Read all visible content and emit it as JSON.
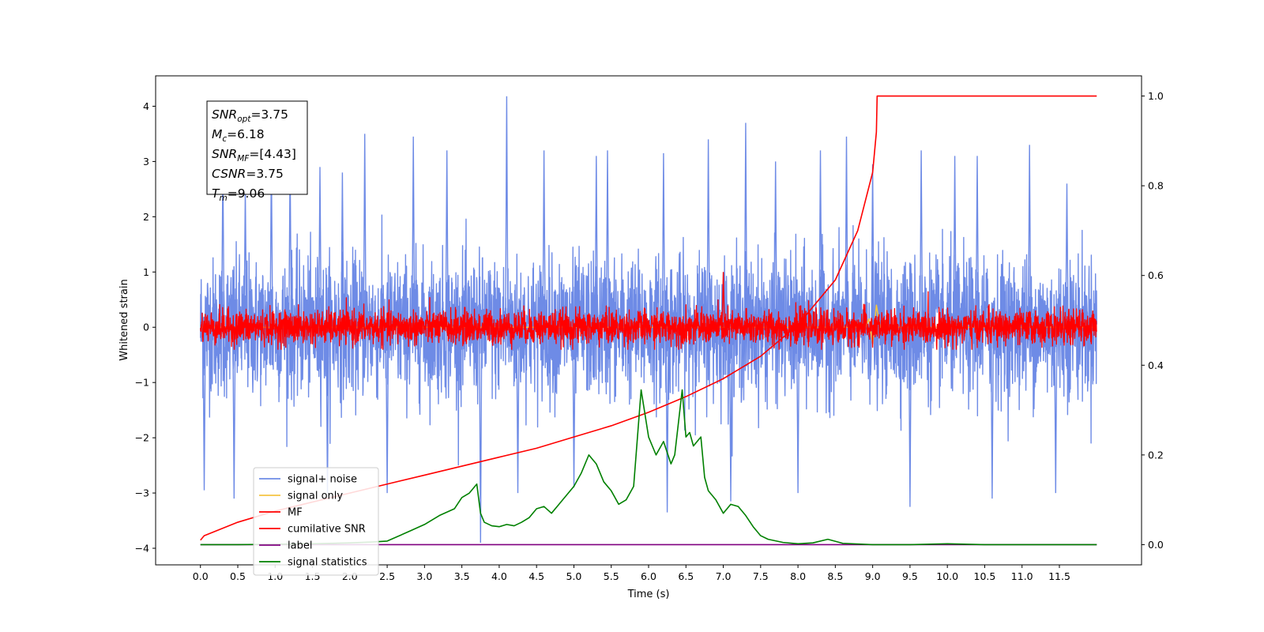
{
  "chart_data": {
    "type": "line",
    "xlabel": "Time (s)",
    "ylabel_left": "Whitened strain",
    "ylabel_right": "",
    "xlim": [
      -0.6,
      12.6
    ],
    "ylim_left": [
      -4.3,
      4.55
    ],
    "ylim_right": [
      -0.045,
      1.045
    ],
    "x_ticks": [
      0.0,
      0.5,
      1.0,
      1.5,
      2.0,
      2.5,
      3.0,
      3.5,
      4.0,
      4.5,
      5.0,
      5.5,
      6.0,
      6.5,
      7.0,
      7.5,
      8.0,
      8.5,
      9.0,
      9.5,
      10.0,
      10.5,
      11.0,
      11.5
    ],
    "x_tick_labels": [
      "0.0",
      "0.5",
      "1.0",
      "1.5",
      "2.0",
      "2.5",
      "3.0",
      "3.5",
      "4.0",
      "4.5",
      "5.0",
      "5.5",
      "6.0",
      "6.5",
      "7.0",
      "7.5",
      "8.0",
      "8.5",
      "9.0",
      "9.5",
      "10.0",
      "10.5",
      "11.0",
      "11.5"
    ],
    "y_ticks_left": [
      -4,
      -3,
      -2,
      -1,
      0,
      1,
      2,
      3,
      4
    ],
    "y_tick_labels_left": [
      "−4",
      "−3",
      "−2",
      "−1",
      "0",
      "1",
      "2",
      "3",
      "4"
    ],
    "y_ticks_right": [
      0.0,
      0.2,
      0.4,
      0.6,
      0.8,
      1.0
    ],
    "y_tick_labels_right": [
      "0.0",
      "0.2",
      "0.4",
      "0.6",
      "0.8",
      "1.0"
    ],
    "legend": {
      "placement": "lower-left",
      "entries": [
        {
          "name": "signal+ noise",
          "color": "#6e8be6"
        },
        {
          "name": "signal only",
          "color": "#f5c542"
        },
        {
          "name": "MF",
          "color": "#ff0000"
        },
        {
          "name": "cumilative SNR",
          "color": "#ff0000"
        },
        {
          "name": "label",
          "color": "#800080"
        },
        {
          "name": "signal statistics",
          "color": "#008000"
        }
      ]
    },
    "annotation": {
      "lines": [
        {
          "base": "SNR",
          "sub": "opt",
          "value": "=3.75"
        },
        {
          "base": "M",
          "sub": "c",
          "value": "=6.18"
        },
        {
          "base": "SNR",
          "sub": "MF",
          "value": "=[4.43]"
        },
        {
          "base": "CSNR",
          "sub": "",
          "value": "=3.75"
        },
        {
          "base": "T",
          "sub": "m",
          "value": "=9.06"
        }
      ]
    },
    "series": [
      {
        "name": "signal+ noise",
        "axis": "left",
        "color": "#6e8be6",
        "noise": {
          "x_start": 0.0,
          "x_end": 12.0,
          "amplitude": 1.0,
          "peak_max": 4.18,
          "trough_min": -3.9
        },
        "spikes": [
          {
            "x": 0.3,
            "y": 3.0
          },
          {
            "x": 0.6,
            "y": 2.5
          },
          {
            "x": 0.95,
            "y": 3.1
          },
          {
            "x": 1.2,
            "y": 3.05
          },
          {
            "x": 1.6,
            "y": 2.9
          },
          {
            "x": 1.9,
            "y": 2.8
          },
          {
            "x": 2.2,
            "y": 3.5
          },
          {
            "x": 2.85,
            "y": 3.45
          },
          {
            "x": 3.3,
            "y": 3.2
          },
          {
            "x": 4.1,
            "y": 4.18
          },
          {
            "x": 4.6,
            "y": 3.2
          },
          {
            "x": 5.3,
            "y": 3.1
          },
          {
            "x": 5.45,
            "y": 3.2
          },
          {
            "x": 6.2,
            "y": 3.15
          },
          {
            "x": 6.8,
            "y": 3.4
          },
          {
            "x": 7.3,
            "y": 3.7
          },
          {
            "x": 7.7,
            "y": 3.0
          },
          {
            "x": 8.3,
            "y": 3.2
          },
          {
            "x": 8.65,
            "y": 3.45
          },
          {
            "x": 9.0,
            "y": 2.95
          },
          {
            "x": 9.65,
            "y": 3.2
          },
          {
            "x": 10.1,
            "y": 3.1
          },
          {
            "x": 10.4,
            "y": 3.1
          },
          {
            "x": 11.1,
            "y": 3.3
          },
          {
            "x": 11.6,
            "y": 2.6
          },
          {
            "x": 0.05,
            "y": -2.95
          },
          {
            "x": 0.45,
            "y": -3.1
          },
          {
            "x": 1.7,
            "y": -3.0
          },
          {
            "x": 2.5,
            "y": -3.0
          },
          {
            "x": 3.75,
            "y": -3.9
          },
          {
            "x": 4.25,
            "y": -3.0
          },
          {
            "x": 5.0,
            "y": -2.9
          },
          {
            "x": 6.25,
            "y": -3.35
          },
          {
            "x": 7.1,
            "y": -3.15
          },
          {
            "x": 8.0,
            "y": -3.0
          },
          {
            "x": 9.5,
            "y": -3.25
          },
          {
            "x": 10.6,
            "y": -3.1
          },
          {
            "x": 11.45,
            "y": -3.0
          }
        ]
      },
      {
        "name": "signal only",
        "axis": "left",
        "color": "#f5c542",
        "x": [
          0.0,
          8.9,
          8.95,
          9.0,
          9.05,
          9.1,
          12.0
        ],
        "y": [
          0.0,
          0.0,
          0.15,
          -0.3,
          0.4,
          0.0,
          0.0
        ]
      },
      {
        "name": "MF",
        "axis": "left",
        "color": "#ff0000",
        "noise": {
          "x_start": 0.0,
          "x_end": 12.0,
          "amplitude": 0.3,
          "peak_max": 1.0,
          "trough_min": -0.4
        }
      },
      {
        "name": "cumilative SNR",
        "axis": "right",
        "color": "#ff0000",
        "x": [
          0.0,
          0.05,
          0.5,
          1.0,
          1.5,
          2.0,
          2.5,
          3.0,
          3.5,
          4.0,
          4.5,
          5.0,
          5.5,
          6.0,
          6.5,
          7.0,
          7.5,
          8.0,
          8.5,
          8.8,
          9.0,
          9.05,
          9.06,
          12.0
        ],
        "y": [
          0.01,
          0.02,
          0.05,
          0.075,
          0.095,
          0.115,
          0.135,
          0.155,
          0.175,
          0.195,
          0.215,
          0.24,
          0.265,
          0.295,
          0.33,
          0.37,
          0.42,
          0.49,
          0.59,
          0.7,
          0.83,
          0.92,
          1.0,
          1.0
        ]
      },
      {
        "name": "label",
        "axis": "right",
        "color": "#800080",
        "x": [
          0.0,
          12.0
        ],
        "y": [
          0.0,
          0.0
        ]
      },
      {
        "name": "signal statistics",
        "axis": "right",
        "color": "#008000",
        "x": [
          0.0,
          0.5,
          1.0,
          1.5,
          2.0,
          2.3,
          2.5,
          2.8,
          3.0,
          3.2,
          3.4,
          3.5,
          3.6,
          3.7,
          3.75,
          3.8,
          3.9,
          4.0,
          4.1,
          4.2,
          4.3,
          4.4,
          4.5,
          4.6,
          4.7,
          4.8,
          4.9,
          5.0,
          5.1,
          5.2,
          5.3,
          5.4,
          5.5,
          5.6,
          5.7,
          5.8,
          5.9,
          6.0,
          6.1,
          6.2,
          6.3,
          6.35,
          6.45,
          6.5,
          6.55,
          6.6,
          6.7,
          6.75,
          6.8,
          6.9,
          7.0,
          7.1,
          7.2,
          7.3,
          7.4,
          7.5,
          7.6,
          7.8,
          8.0,
          8.2,
          8.4,
          8.6,
          9.0,
          9.5,
          10.0,
          10.5,
          11.0,
          12.0
        ],
        "y": [
          0.0,
          0.0,
          0.001,
          0.002,
          0.004,
          0.006,
          0.008,
          0.03,
          0.045,
          0.065,
          0.08,
          0.105,
          0.115,
          0.135,
          0.07,
          0.05,
          0.042,
          0.04,
          0.045,
          0.042,
          0.05,
          0.06,
          0.08,
          0.085,
          0.07,
          0.09,
          0.11,
          0.13,
          0.16,
          0.2,
          0.18,
          0.14,
          0.12,
          0.09,
          0.1,
          0.13,
          0.345,
          0.24,
          0.2,
          0.23,
          0.18,
          0.2,
          0.345,
          0.24,
          0.25,
          0.22,
          0.24,
          0.15,
          0.12,
          0.1,
          0.07,
          0.09,
          0.085,
          0.065,
          0.04,
          0.02,
          0.012,
          0.005,
          0.002,
          0.004,
          0.012,
          0.003,
          0.0,
          0.0,
          0.002,
          0.0,
          0.0,
          0.0
        ]
      }
    ]
  }
}
